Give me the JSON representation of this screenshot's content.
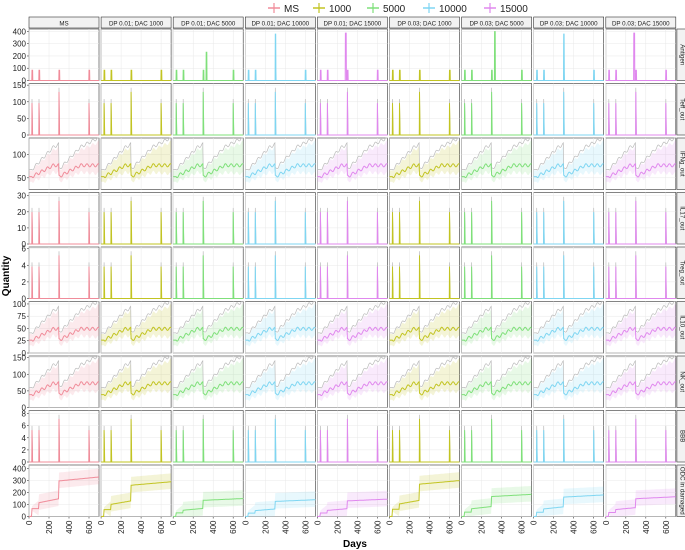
{
  "chart_data": {
    "type": "line",
    "title": "",
    "xlabel": "Days",
    "ylabel": "Quantity",
    "legend": {
      "placement": "top",
      "entries": [
        {
          "label": "MS",
          "color": "#f08c9a"
        },
        {
          "label": "1000",
          "color": "#c2c422"
        },
        {
          "label": "5000",
          "color": "#7fe07a"
        },
        {
          "label": "10000",
          "color": "#7fd6f2"
        },
        {
          "label": "15000",
          "color": "#e088ee"
        }
      ]
    },
    "x_ticks": [
      0,
      200,
      400,
      600
    ],
    "x_range": [
      0,
      700
    ],
    "grid": true,
    "columns": [
      {
        "label": "MS",
        "color": "#f08c9a"
      },
      {
        "label": "DP 0.01; DAC 1000",
        "color": "#c2c422"
      },
      {
        "label": "DP 0.01; DAC 5000",
        "color": "#7fe07a"
      },
      {
        "label": "DP 0.01; DAC 10000",
        "color": "#7fd6f2"
      },
      {
        "label": "DP 0.01; DAC 15000",
        "color": "#e088ee"
      },
      {
        "label": "DP 0.03; DAC 1000",
        "color": "#c2c422"
      },
      {
        "label": "DP 0.03; DAC 5000",
        "color": "#7fe07a"
      },
      {
        "label": "DP 0.03; DAC 10000",
        "color": "#7fd6f2"
      },
      {
        "label": "DP 0.03; DAC 15000",
        "color": "#e088ee"
      }
    ],
    "rows": [
      {
        "label": "Antigen",
        "y_range": [
          0,
          420
        ],
        "y_ticks": [
          0,
          100,
          200,
          300,
          400
        ],
        "kind": "antigen"
      },
      {
        "label": "Teff_out",
        "y_range": [
          0,
          155
        ],
        "y_ticks": [
          0,
          50,
          100,
          150
        ],
        "kind": "spike"
      },
      {
        "label": "IFNg_out",
        "y_range": [
          25,
          135
        ],
        "y_ticks": [
          50,
          100
        ],
        "kind": "sawtooth"
      },
      {
        "label": "IL17_out",
        "y_range": [
          0,
          32
        ],
        "y_ticks": [
          0,
          10,
          20,
          30
        ],
        "kind": "spike"
      },
      {
        "label": "Treg_out",
        "y_range": [
          0,
          6.2
        ],
        "y_ticks": [
          0,
          2,
          4,
          6
        ],
        "kind": "spike"
      },
      {
        "label": "IL10_out",
        "y_range": [
          0,
          105
        ],
        "y_ticks": [
          0,
          25,
          50,
          75,
          100
        ],
        "kind": "sawtooth"
      },
      {
        "label": "NK_out",
        "y_range": [
          0,
          155
        ],
        "y_ticks": [
          0,
          50,
          100,
          150
        ],
        "kind": "sawtooth"
      },
      {
        "label": "BBB",
        "y_range": [
          0,
          8.5
        ],
        "y_ticks": [
          0,
          2,
          4,
          6,
          8
        ],
        "kind": "bbb"
      },
      {
        "label": "ODC in damaged",
        "y_range": [
          0,
          430
        ],
        "y_ticks": [
          0,
          100,
          200,
          300,
          400
        ],
        "kind": "step"
      }
    ],
    "damage_final": [
      330,
      290,
      150,
      140,
      145,
      300,
      185,
      180,
      165
    ]
  }
}
